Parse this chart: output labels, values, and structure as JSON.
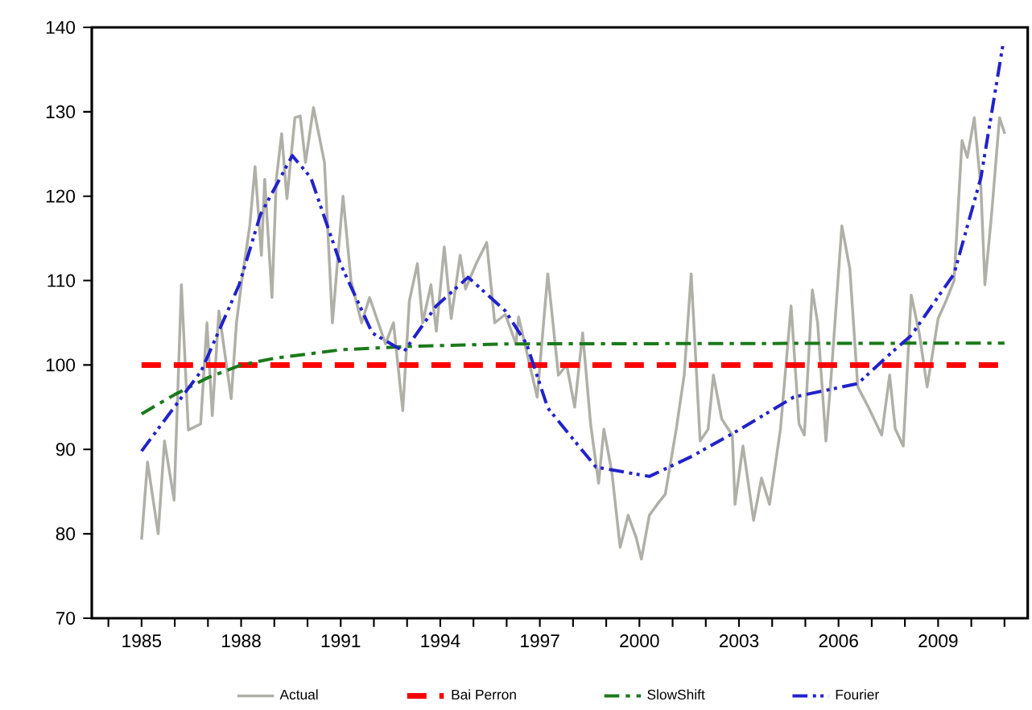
{
  "chart_data": {
    "type": "line",
    "xlim": [
      1983.5,
      2011.7
    ],
    "ylim": [
      70,
      140
    ],
    "xticks": [
      {
        "value": 1984,
        "label": null
      },
      1985,
      {
        "value": 1986,
        "label": null
      },
      {
        "value": 1987,
        "label": null
      },
      1988,
      {
        "value": 1989,
        "label": null
      },
      {
        "value": 1990,
        "label": null
      },
      1991,
      {
        "value": 1992,
        "label": null
      },
      {
        "value": 1993,
        "label": null
      },
      1994,
      {
        "value": 1995,
        "label": null
      },
      {
        "value": 1996,
        "label": null
      },
      1997,
      {
        "value": 1998,
        "label": null
      },
      {
        "value": 1999,
        "label": null
      },
      2000,
      {
        "value": 2001,
        "label": null
      },
      {
        "value": 2002,
        "label": null
      },
      2003,
      {
        "value": 2004,
        "label": null
      },
      {
        "value": 2005,
        "label": null
      },
      2006,
      {
        "value": 2007,
        "label": null
      },
      {
        "value": 2008,
        "label": null
      },
      2009,
      {
        "value": 2010,
        "label": null
      },
      {
        "value": 2011,
        "label": null
      }
    ],
    "yticks": [
      70,
      80,
      90,
      100,
      110,
      120,
      130,
      140
    ],
    "grid": false,
    "legend": "bottom",
    "marker": "none",
    "series": [
      {
        "name": "Actual",
        "color": "#b0b0a8",
        "line_style": "solid",
        "x": [
          1985.0,
          1985.18,
          1985.5,
          1985.69,
          1985.98,
          1986.2,
          1986.41,
          1986.78,
          1986.97,
          1987.13,
          1987.33,
          1987.7,
          1987.86,
          1988.02,
          1988.26,
          1988.42,
          1988.61,
          1988.71,
          1988.93,
          1989.06,
          1989.22,
          1989.38,
          1989.62,
          1989.78,
          1989.94,
          1990.18,
          1990.51,
          1990.75,
          1991.07,
          1991.31,
          1991.63,
          1991.87,
          1992.35,
          1992.59,
          1992.87,
          1993.07,
          1993.31,
          1993.47,
          1993.72,
          1993.88,
          1994.12,
          1994.33,
          1994.6,
          1994.76,
          1995.08,
          1995.4,
          1995.64,
          1995.96,
          1996.28,
          1996.36,
          1996.92,
          1997.24,
          1997.56,
          1997.81,
          1998.05,
          1998.29,
          1998.53,
          1998.77,
          1998.93,
          1999.17,
          1999.42,
          1999.66,
          1999.9,
          2000.06,
          2000.3,
          2000.54,
          2000.78,
          2001.11,
          2001.35,
          2001.56,
          2001.83,
          2002.07,
          2002.23,
          2002.48,
          2002.8,
          2002.88,
          2003.12,
          2003.44,
          2003.68,
          2003.92,
          2004.25,
          2004.57,
          2004.81,
          2004.97,
          2005.21,
          2005.37,
          2005.62,
          2005.78,
          2006.1,
          2006.34,
          2006.58,
          2006.9,
          2007.3,
          2007.54,
          2007.71,
          2007.95,
          2008.19,
          2008.43,
          2008.67,
          2009.0,
          2009.24,
          2009.48,
          2009.72,
          2009.88,
          2010.09,
          2010.29,
          2010.41,
          2010.61,
          2010.85,
          2011.01
        ],
        "values": [
          79.3,
          88.5,
          80,
          91,
          84,
          109.5,
          92.3,
          93,
          105,
          94,
          106.4,
          96,
          105,
          110,
          116.5,
          123.5,
          113,
          122,
          108,
          122,
          127.4,
          119.7,
          129.3,
          129.5,
          124,
          130.5,
          124,
          105,
          120,
          110,
          105,
          108,
          102.5,
          105,
          94.6,
          107.6,
          112,
          105,
          109.5,
          104,
          114,
          105.5,
          113,
          109,
          112,
          114.5,
          105,
          106,
          102.5,
          105.7,
          96.2,
          110.8,
          98.8,
          100,
          95,
          103.8,
          93,
          86,
          92.4,
          87.3,
          78.4,
          82.2,
          79.6,
          77,
          82.2,
          83.5,
          84.7,
          92.4,
          98.8,
          110.8,
          91,
          92.4,
          98.8,
          93.6,
          91.7,
          83.5,
          90.4,
          81.6,
          86.6,
          83.5,
          92.4,
          107,
          93,
          91.7,
          108.9,
          105,
          91,
          98.8,
          116.5,
          111.4,
          97.4,
          95,
          91.7,
          98.8,
          92.4,
          90.4,
          108.3,
          103.8,
          97.4,
          105.5,
          107.6,
          110,
          126.6,
          124.6,
          129.3,
          121,
          109.5,
          117.8,
          129.3,
          127.4
        ]
      },
      {
        "name": "Bai Perron",
        "color": "#ff0000",
        "line_style": "dashed",
        "x": [
          1985.0,
          2011.0
        ],
        "values": [
          100,
          100
        ]
      },
      {
        "name": "SlowShift",
        "color": "#1a7a1a",
        "line_style": "dashdot",
        "x": [
          1985.0,
          1986.0,
          1987.0,
          1988.0,
          1989.0,
          1990.0,
          1991.0,
          1993.0,
          1996.0,
          2011.0
        ],
        "values": [
          94.2,
          96.5,
          98.5,
          100,
          100.8,
          101.3,
          101.8,
          102.2,
          102.5,
          102.6
        ]
      },
      {
        "name": "Fourier",
        "color": "#2222cc",
        "line_style": "dashdotdot",
        "x": [
          1985.0,
          1986.8,
          1987.94,
          1988.58,
          1989.54,
          1990.1,
          1990.99,
          1991.95,
          1992.91,
          1993.88,
          1994.84,
          1995.96,
          1996.6,
          1997.24,
          1998.69,
          2000.3,
          2001.59,
          2003.04,
          2004.65,
          2006.58,
          2007.55,
          2008.19,
          2009.48,
          2010.29,
          2010.96
        ],
        "values": [
          89.8,
          99.3,
          109.5,
          117.8,
          124.8,
          122.2,
          112,
          103.8,
          101.6,
          107,
          110.4,
          106.4,
          102.5,
          94.9,
          87.9,
          86.8,
          89.2,
          92.4,
          96.2,
          97.8,
          101.3,
          103.5,
          110.8,
          122.2,
          138.1
        ]
      }
    ]
  }
}
